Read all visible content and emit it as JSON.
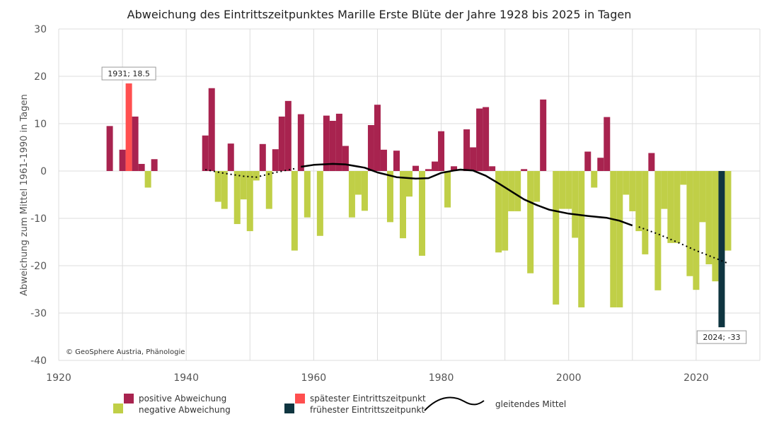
{
  "chart_data": {
    "type": "bar",
    "title": "Abweichung des Eintrittszeitpunktes Marille Erste Blüte der Jahre 1928 bis 2025 in Tagen",
    "ylabel": "Abweichung zum Mittel 1961-1990 in Tagen",
    "xlabel": "",
    "xlim": [
      1920,
      2030
    ],
    "ylim": [
      -40,
      30
    ],
    "xticks": [
      "1920",
      "1940",
      "1960",
      "1980",
      "2000",
      "2020"
    ],
    "yticks": [
      "30",
      "20",
      "10",
      "0",
      "-10",
      "-20",
      "-30",
      "-40"
    ],
    "grid": true,
    "legend_position": "bottom",
    "colors": {
      "positive": "#A8234F",
      "negative": "#C0CF47",
      "latest": "#FF4F4F",
      "earliest": "#0F3540",
      "moving_average": "#000000"
    },
    "series": [
      {
        "name": "Abweichung",
        "x": [
          1928,
          1930,
          1931,
          1932,
          1933,
          1934,
          1935,
          1943,
          1944,
          1945,
          1946,
          1947,
          1948,
          1949,
          1950,
          1951,
          1952,
          1953,
          1954,
          1955,
          1956,
          1957,
          1958,
          1959,
          1960,
          1961,
          1962,
          1963,
          1964,
          1965,
          1966,
          1967,
          1968,
          1969,
          1970,
          1971,
          1972,
          1973,
          1974,
          1975,
          1976,
          1977,
          1978,
          1979,
          1980,
          1981,
          1982,
          1983,
          1984,
          1985,
          1986,
          1987,
          1988,
          1989,
          1990,
          1991,
          1992,
          1993,
          1994,
          1995,
          1996,
          1997,
          1998,
          1999,
          2000,
          2001,
          2002,
          2003,
          2004,
          2005,
          2006,
          2007,
          2008,
          2009,
          2010,
          2011,
          2012,
          2013,
          2014,
          2015,
          2016,
          2017,
          2018,
          2019,
          2020,
          2021,
          2022,
          2023,
          2024,
          2025
        ],
        "values": [
          9.5,
          4.5,
          18.5,
          11.5,
          1.5,
          -3.5,
          2.5,
          7.5,
          17.5,
          -6.5,
          -8,
          5.8,
          -11.2,
          -6,
          -12.7,
          -2,
          5.7,
          -8,
          4.6,
          11.5,
          14.8,
          -16.8,
          12,
          -9.8,
          0,
          -13.7,
          11.7,
          10.6,
          12.1,
          5.3,
          -9.8,
          -5,
          -8.4,
          9.7,
          14,
          4.5,
          -10.8,
          4.3,
          -14.2,
          -5.4,
          1.1,
          -17.9,
          0.4,
          2,
          8.4,
          -7.7,
          1,
          0,
          8.8,
          5,
          13.2,
          13.5,
          1,
          -17.2,
          -16.8,
          -8.5,
          -8.5,
          0.4,
          -21.6,
          -6.5,
          15.1,
          0,
          -28.2,
          -8,
          -8,
          -14.1,
          -28.8,
          4.1,
          -3.5,
          2.8,
          11.4,
          -28.8,
          -28.8,
          -5,
          -8.5,
          -12.7,
          -17.6,
          3.8,
          -25.2,
          -8,
          -15.2,
          -15.2,
          -2.9,
          -22.2,
          -25.1,
          -10.8,
          -19.7,
          -23.3,
          -33,
          -16.8
        ]
      },
      {
        "name": "gleitendes Mittel",
        "x": [
          1943,
          1946,
          1949,
          1951,
          1954,
          1957,
          1958,
          1960,
          1963,
          1965,
          1968,
          1970,
          1973,
          1976,
          1978,
          1980,
          1982,
          1983,
          1985,
          1987,
          1989,
          1991,
          1993,
          1995,
          1997,
          2000,
          2003,
          2006,
          2008,
          2010
        ],
        "values": [
          0.3,
          -0.5,
          -1.1,
          -1.3,
          -0.3,
          0.5,
          0.9,
          1.3,
          1.5,
          1.4,
          0.7,
          -0.3,
          -1.3,
          -1.6,
          -1.5,
          -0.4,
          0.1,
          0.3,
          0.1,
          -1.0,
          -2.6,
          -4.3,
          -6.0,
          -7.2,
          -8.2,
          -9.0,
          -9.5,
          -9.9,
          -10.5,
          -11.5
        ]
      }
    ],
    "extension_past": {
      "x": [
        1943,
        1946,
        1949,
        1951,
        1954,
        1957
      ],
      "values": [
        0.3,
        -0.5,
        -1.1,
        -1.3,
        -0.3,
        0.5
      ]
    },
    "extension_future": {
      "x": [
        2011,
        2014,
        2017,
        2020,
        2023,
        2025
      ],
      "values": [
        -11.8,
        -13.3,
        -15.0,
        -16.8,
        -18.4,
        -19.5
      ]
    },
    "annotations": [
      {
        "x": 1931,
        "y": 18.5,
        "text": "1931; 18.5"
      },
      {
        "x": 2024,
        "y": -33,
        "text": "2024; -33"
      }
    ],
    "credit": "© GeoSphere Austria, Phänologie"
  },
  "legend": {
    "positive": "positive Abweichung",
    "negative": "negative Abweichung",
    "latest": "spätester Eintrittszeitpunkt",
    "earliest": "frühester Eintrittszeitpunkt",
    "moving_average": "gleitendes Mittel"
  }
}
